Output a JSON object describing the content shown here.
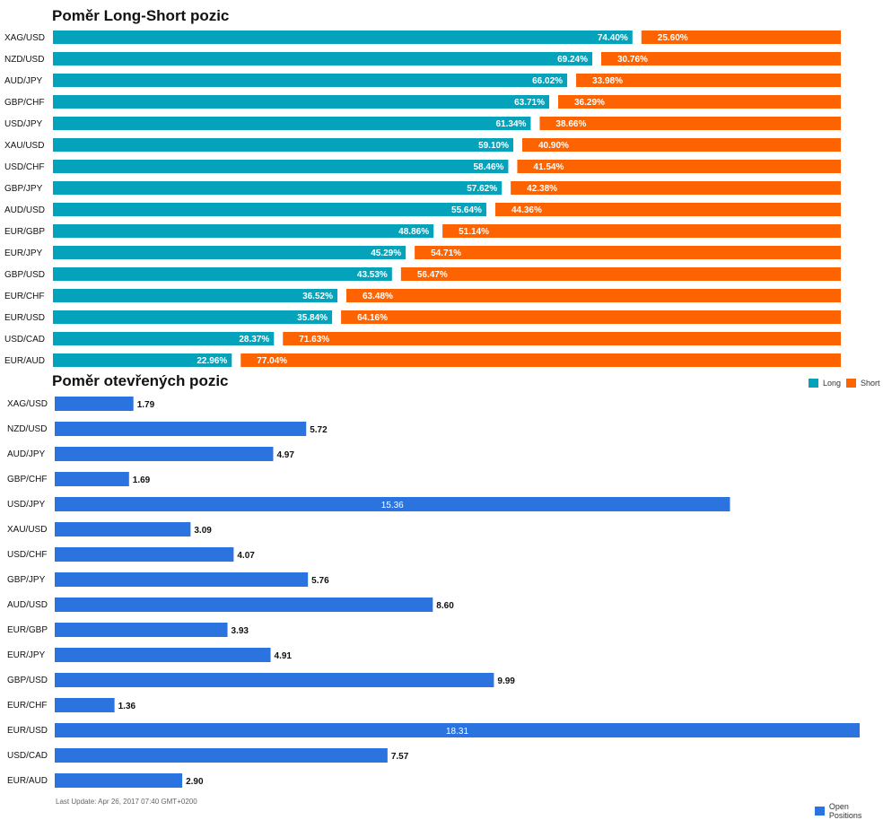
{
  "colors": {
    "long": "#05a3bb",
    "short": "#fd6300",
    "open": "#2b73df"
  },
  "chart_data": [
    {
      "type": "bar",
      "orientation": "horizontal",
      "stacked": true,
      "title": "Poměr Long-Short pozic",
      "categories": [
        "XAG/USD",
        "NZD/USD",
        "AUD/JPY",
        "GBP/CHF",
        "USD/JPY",
        "XAU/USD",
        "USD/CHF",
        "GBP/JPY",
        "AUD/USD",
        "EUR/GBP",
        "EUR/JPY",
        "GBP/USD",
        "EUR/CHF",
        "EUR/USD",
        "USD/CAD",
        "EUR/AUD"
      ],
      "series": [
        {
          "name": "Long",
          "values": [
            74.4,
            69.24,
            66.02,
            63.71,
            61.34,
            59.1,
            58.46,
            57.62,
            55.64,
            48.86,
            45.29,
            43.53,
            36.52,
            35.84,
            28.37,
            22.96
          ]
        },
        {
          "name": "Short",
          "values": [
            25.6,
            30.76,
            33.98,
            36.29,
            38.66,
            40.9,
            41.54,
            42.38,
            44.36,
            51.14,
            54.71,
            56.47,
            63.48,
            64.16,
            71.63,
            77.04
          ]
        }
      ],
      "value_format": "%",
      "xlim": [
        0,
        100
      ],
      "grid": false,
      "legend": "right"
    },
    {
      "type": "bar",
      "orientation": "horizontal",
      "title": "Poměr otevřených pozic",
      "categories": [
        "XAG/USD",
        "NZD/USD",
        "AUD/JPY",
        "GBP/CHF",
        "USD/JPY",
        "XAU/USD",
        "USD/CHF",
        "GBP/JPY",
        "AUD/USD",
        "EUR/GBP",
        "EUR/JPY",
        "GBP/USD",
        "EUR/CHF",
        "EUR/USD",
        "USD/CAD",
        "EUR/AUD"
      ],
      "series": [
        {
          "name": "Open Positions",
          "values": [
            1.79,
            5.72,
            4.97,
            1.69,
            15.36,
            3.09,
            4.07,
            5.76,
            8.6,
            3.93,
            4.91,
            9.99,
            1.36,
            18.31,
            7.57,
            2.9
          ]
        }
      ],
      "xlim": [
        0,
        18.31
      ],
      "grid": false,
      "legend": "bottom-right"
    }
  ],
  "footer": "Last Update: Apr 26, 2017 07:40 GMT+0200"
}
